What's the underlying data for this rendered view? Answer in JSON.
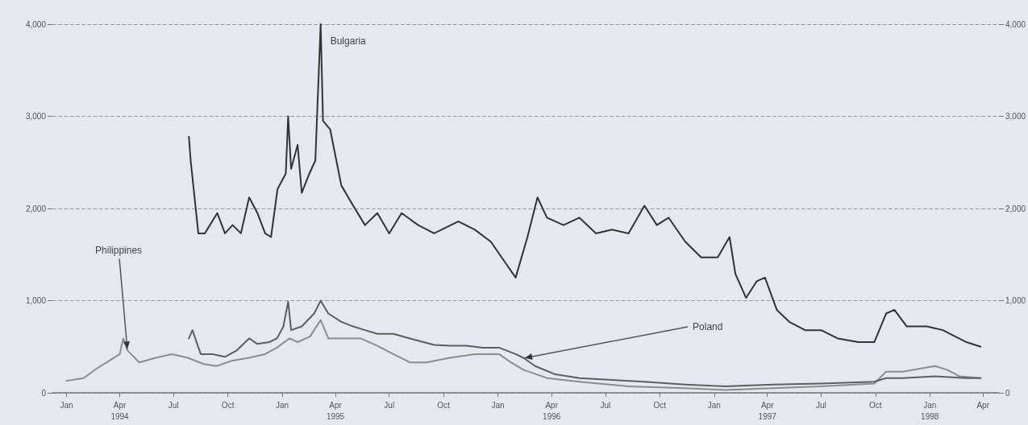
{
  "chart_data": {
    "type": "line",
    "xlim": [
      "1993-12-08",
      "1998-04-28"
    ],
    "xticks": [
      {
        "value": "1994-01-01",
        "label": "Jan"
      },
      {
        "value": "1994-04-01",
        "label": "Apr\n1994"
      },
      {
        "value": "1994-07-01",
        "label": "Jul"
      },
      {
        "value": "1994-10-01",
        "label": "Oct"
      },
      {
        "value": "1995-01-01",
        "label": "Jan"
      },
      {
        "value": "1995-04-01",
        "label": "Apr\n1995"
      },
      {
        "value": "1995-07-01",
        "label": "Jul"
      },
      {
        "value": "1995-10-01",
        "label": "Oct"
      },
      {
        "value": "1996-01-01",
        "label": "Jan"
      },
      {
        "value": "1996-04-01",
        "label": "Apr\n1996"
      },
      {
        "value": "1996-07-01",
        "label": "Jul"
      },
      {
        "value": "1996-10-01",
        "label": "Oct"
      },
      {
        "value": "1997-01-01",
        "label": "Jan"
      },
      {
        "value": "1997-04-01",
        "label": "Apr\n1997"
      },
      {
        "value": "1997-07-01",
        "label": "Jul"
      },
      {
        "value": "1997-10-01",
        "label": "Oct"
      },
      {
        "value": "1998-01-01",
        "label": "Jan\n1998"
      },
      {
        "value": "1998-04-01",
        "label": "Apr"
      }
    ],
    "ylim": [
      0,
      4000
    ],
    "yticks": [
      {
        "value": 0,
        "label": "0"
      },
      {
        "value": 1000,
        "label": "1,000"
      },
      {
        "value": 2000,
        "label": "2,000"
      },
      {
        "value": 3000,
        "label": "3,000"
      },
      {
        "value": 4000,
        "label": "4,000"
      }
    ],
    "y2lim": [
      0,
      4000
    ],
    "y2ticks": [
      {
        "value": 0,
        "label": "0"
      },
      {
        "value": 1000,
        "label": "1,000"
      },
      {
        "value": 2000,
        "label": "2,000"
      },
      {
        "value": 3000,
        "label": "3,000"
      },
      {
        "value": 4000,
        "label": "4,000"
      }
    ],
    "grid": "y",
    "marker": "none",
    "line_style": "solid",
    "annotations": [
      {
        "text": "Bulgaria",
        "x": "1995-03-07",
        "y": 4000
      },
      {
        "text": "Philippines",
        "x": "1994-04-14",
        "y": 460
      },
      {
        "text": "Poland",
        "x": "1996-02-13",
        "y": 375
      }
    ],
    "series": [
      {
        "color": "#333333",
        "x": [
          "1994-07-27",
          "1994-07-30",
          "1994-08-12",
          "1994-08-23",
          "1994-09-13",
          "1994-09-26",
          "1994-10-09",
          "1994-10-23",
          "1994-11-06",
          "1994-11-20",
          "1994-12-03",
          "1994-12-13",
          "1994-12-24",
          "1995-01-07",
          "1995-01-11",
          "1995-01-16",
          "1995-01-27",
          "1995-02-03",
          "1995-02-16",
          "1995-02-26",
          "1995-03-07",
          "1995-03-11",
          "1995-03-23",
          "1995-04-11",
          "1995-05-01",
          "1995-05-21",
          "1995-06-11",
          "1995-07-01",
          "1995-07-22",
          "1995-08-19",
          "1995-09-15",
          "1995-10-26",
          "1995-11-23",
          "1995-12-20",
          "1996-01-17",
          "1996-01-31",
          "1996-02-20",
          "1996-03-08",
          "1996-03-24",
          "1996-04-21",
          "1996-05-18",
          "1996-06-15",
          "1996-07-12",
          "1996-08-09",
          "1996-09-05",
          "1996-09-26",
          "1996-10-16",
          "1996-11-13",
          "1996-12-10",
          "1997-01-07",
          "1997-01-27",
          "1997-02-06",
          "1997-02-24",
          "1997-03-14",
          "1997-03-28",
          "1997-04-17",
          "1997-05-08",
          "1997-06-04",
          "1997-07-01",
          "1997-07-29",
          "1997-09-02",
          "1997-09-29",
          "1997-10-19",
          "1997-11-02",
          "1997-11-23",
          "1997-12-27",
          "1998-01-23",
          "1998-03-04",
          "1998-03-28"
        ],
        "values": [
          2780,
          2520,
          1730,
          1730,
          1950,
          1730,
          1820,
          1730,
          2120,
          1950,
          1730,
          1690,
          2210,
          2380,
          3000,
          2430,
          2690,
          2170,
          2380,
          2520,
          4000,
          2950,
          2860,
          2250,
          2030,
          1820,
          1950,
          1730,
          1950,
          1820,
          1730,
          1860,
          1770,
          1640,
          1380,
          1250,
          1690,
          2120,
          1900,
          1820,
          1900,
          1730,
          1770,
          1730,
          2030,
          1820,
          1900,
          1640,
          1470,
          1470,
          1690,
          1290,
          1030,
          1210,
          1250,
          900,
          770,
          680,
          680,
          590,
          550,
          550,
          860,
          900,
          720,
          720,
          680,
          550,
          500
        ]
      },
      {
        "color": "#8c8c8c",
        "x": [
          "1994-01-01",
          "1994-01-30",
          "1994-02-20",
          "1994-03-10",
          "1994-04-01",
          "1994-04-07",
          "1994-04-14",
          "1994-05-04",
          "1994-06-01",
          "1994-06-28",
          "1994-07-25",
          "1994-08-22",
          "1994-09-12",
          "1994-10-09",
          "1994-11-06",
          "1994-12-03",
          "1994-12-23",
          "1995-01-13",
          "1995-01-27",
          "1995-02-17",
          "1995-03-07",
          "1995-03-20",
          "1995-04-17",
          "1995-05-14",
          "1995-06-11",
          "1995-07-08",
          "1995-08-05",
          "1995-09-02",
          "1995-10-12",
          "1995-11-23",
          "1996-01-03",
          "1996-01-23",
          "1996-02-13",
          "1996-03-24",
          "1996-05-18",
          "1996-08-09",
          "1996-11-13",
          "1997-01-20",
          "1997-04-10",
          "1997-07-01",
          "1997-09-29",
          "1997-10-19",
          "1997-11-16",
          "1997-12-13",
          "1998-01-10",
          "1998-01-30",
          "1998-02-20",
          "1998-03-28"
        ],
        "values": [
          130,
          160,
          260,
          330,
          420,
          590,
          460,
          330,
          380,
          420,
          380,
          310,
          290,
          350,
          380,
          420,
          490,
          590,
          550,
          610,
          790,
          590,
          590,
          590,
          510,
          420,
          330,
          330,
          380,
          420,
          420,
          330,
          250,
          160,
          120,
          70,
          50,
          30,
          50,
          70,
          100,
          230,
          230,
          260,
          290,
          250,
          180,
          160
        ]
      },
      {
        "color": "#5e5e5e",
        "x": [
          "1994-07-27",
          "1994-08-02",
          "1994-08-16",
          "1994-09-05",
          "1994-09-26",
          "1994-10-16",
          "1994-11-06",
          "1994-11-20",
          "1994-12-10",
          "1994-12-23",
          "1995-01-03",
          "1995-01-11",
          "1995-01-16",
          "1995-02-03",
          "1995-02-24",
          "1995-03-07",
          "1995-03-20",
          "1995-04-11",
          "1995-05-01",
          "1995-05-21",
          "1995-06-11",
          "1995-07-08",
          "1995-08-05",
          "1995-09-15",
          "1995-10-12",
          "1995-11-09",
          "1995-12-06",
          "1996-01-03",
          "1996-01-31",
          "1996-02-13",
          "1996-03-04",
          "1996-04-07",
          "1996-05-18",
          "1996-07-12",
          "1996-09-05",
          "1996-11-13",
          "1997-01-20",
          "1997-04-10",
          "1997-07-01",
          "1997-09-29",
          "1997-10-19",
          "1997-11-16",
          "1998-01-10",
          "1998-03-04",
          "1998-03-28"
        ],
        "values": [
          590,
          680,
          420,
          420,
          390,
          460,
          590,
          530,
          550,
          590,
          720,
          990,
          680,
          720,
          860,
          1000,
          860,
          770,
          720,
          680,
          640,
          640,
          590,
          520,
          510,
          510,
          490,
          490,
          420,
          380,
          290,
          200,
          160,
          140,
          120,
          90,
          70,
          90,
          100,
          120,
          160,
          160,
          180,
          160,
          160
        ]
      }
    ]
  }
}
